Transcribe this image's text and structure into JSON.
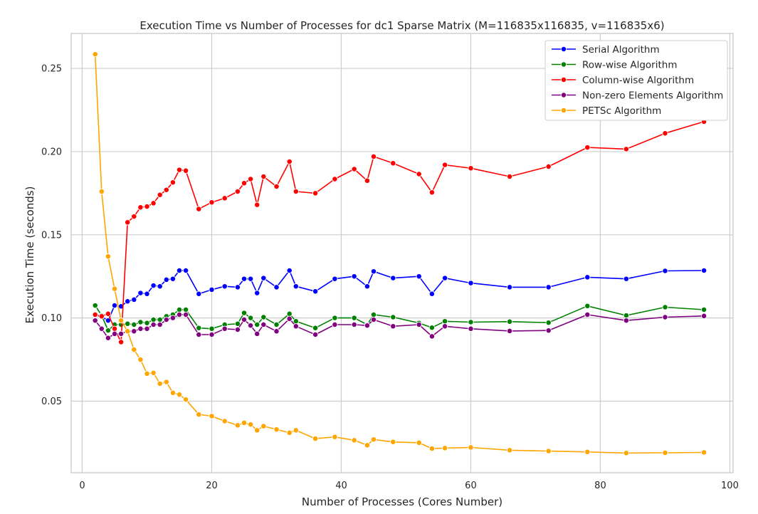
{
  "chart_data": {
    "type": "line",
    "title": "Execution Time vs Number of Processes for dc1 Sparse Matrix (M=116835x116835, v=116835x6)",
    "xlabel": "Number of Processes (Cores Number)",
    "ylabel": "Execution Time (seconds)",
    "xlim": [
      -1.7,
      100.5
    ],
    "ylim": [
      0.007,
      0.271
    ],
    "xticks": [
      0,
      20,
      40,
      60,
      80,
      100
    ],
    "xtick_labels": [
      "0",
      "20",
      "40",
      "60",
      "80",
      "100"
    ],
    "yticks": [
      0.05,
      0.1,
      0.15,
      0.2,
      0.25
    ],
    "ytick_labels": [
      "0.05",
      "0.10",
      "0.15",
      "0.20",
      "0.25"
    ],
    "grid": true,
    "legend_position": "top-right",
    "x": [
      2,
      3,
      4,
      5,
      6,
      7,
      8,
      9,
      10,
      11,
      12,
      13,
      14,
      15,
      16,
      18,
      20,
      22,
      24,
      25,
      26,
      27,
      28,
      30,
      32,
      33,
      36,
      39,
      42,
      44,
      45,
      48,
      52,
      54,
      56,
      60,
      66,
      72,
      78,
      84,
      90,
      96
    ],
    "series": [
      {
        "name": "Serial Algorithm",
        "color": "#0000ff",
        "values": [
          0.1015,
          0.1007,
          0.0985,
          0.1075,
          0.107,
          0.11,
          0.111,
          0.115,
          0.1145,
          0.1195,
          0.119,
          0.123,
          0.1235,
          0.1285,
          0.1285,
          0.1145,
          0.117,
          0.119,
          0.1185,
          0.1235,
          0.1235,
          0.115,
          0.124,
          0.1185,
          0.1285,
          0.119,
          0.116,
          0.1235,
          0.125,
          0.119,
          0.128,
          0.124,
          0.125,
          0.1145,
          0.124,
          0.121,
          0.1185,
          0.1185,
          0.1245,
          0.1235,
          0.1283,
          0.1285
        ]
      },
      {
        "name": "Row-wise Algorithm",
        "color": "#008000",
        "values": [
          0.1075,
          0.1015,
          0.0925,
          0.096,
          0.096,
          0.0965,
          0.096,
          0.0975,
          0.097,
          0.099,
          0.099,
          0.101,
          0.102,
          0.105,
          0.105,
          0.094,
          0.0935,
          0.096,
          0.0965,
          0.103,
          0.1,
          0.096,
          0.1005,
          0.096,
          0.1025,
          0.098,
          0.094,
          0.1,
          0.1,
          0.096,
          0.102,
          0.1005,
          0.097,
          0.0942,
          0.098,
          0.0975,
          0.0978,
          0.0972,
          0.1072,
          0.1015,
          0.1065,
          0.105
        ]
      },
      {
        "name": "Column-wise Algorithm",
        "color": "#ff0000",
        "values": [
          0.102,
          0.101,
          0.1025,
          0.0935,
          0.0855,
          0.1575,
          0.161,
          0.1665,
          0.167,
          0.169,
          0.174,
          0.177,
          0.1815,
          0.189,
          0.1885,
          0.1655,
          0.1695,
          0.172,
          0.176,
          0.181,
          0.1835,
          0.168,
          0.185,
          0.179,
          0.194,
          0.176,
          0.175,
          0.1835,
          0.1895,
          0.1825,
          0.197,
          0.193,
          0.1865,
          0.1755,
          0.192,
          0.19,
          0.185,
          0.191,
          0.2025,
          0.2015,
          0.211,
          0.218
        ]
      },
      {
        "name": "Non-zero Elements Algorithm",
        "color": "#800080",
        "values": [
          0.0985,
          0.0935,
          0.088,
          0.0905,
          0.0905,
          0.092,
          0.092,
          0.0935,
          0.0935,
          0.096,
          0.096,
          0.099,
          0.1,
          0.102,
          0.102,
          0.09,
          0.09,
          0.0935,
          0.093,
          0.099,
          0.0955,
          0.0905,
          0.096,
          0.092,
          0.0995,
          0.095,
          0.09,
          0.096,
          0.096,
          0.0955,
          0.099,
          0.095,
          0.096,
          0.089,
          0.095,
          0.0935,
          0.0922,
          0.0925,
          0.102,
          0.0985,
          0.1005,
          0.1012
        ]
      },
      {
        "name": "PETSc Algorithm",
        "color": "#ffa500",
        "values": [
          0.2585,
          0.176,
          0.137,
          0.1175,
          0.0985,
          0.092,
          0.081,
          0.075,
          0.0665,
          0.067,
          0.0605,
          0.0615,
          0.055,
          0.054,
          0.051,
          0.042,
          0.041,
          0.038,
          0.0355,
          0.037,
          0.036,
          0.0325,
          0.035,
          0.033,
          0.031,
          0.0325,
          0.0275,
          0.0285,
          0.0265,
          0.0235,
          0.027,
          0.0255,
          0.025,
          0.0215,
          0.0218,
          0.0222,
          0.0205,
          0.02,
          0.0195,
          0.0188,
          0.019,
          0.0192
        ]
      }
    ]
  }
}
